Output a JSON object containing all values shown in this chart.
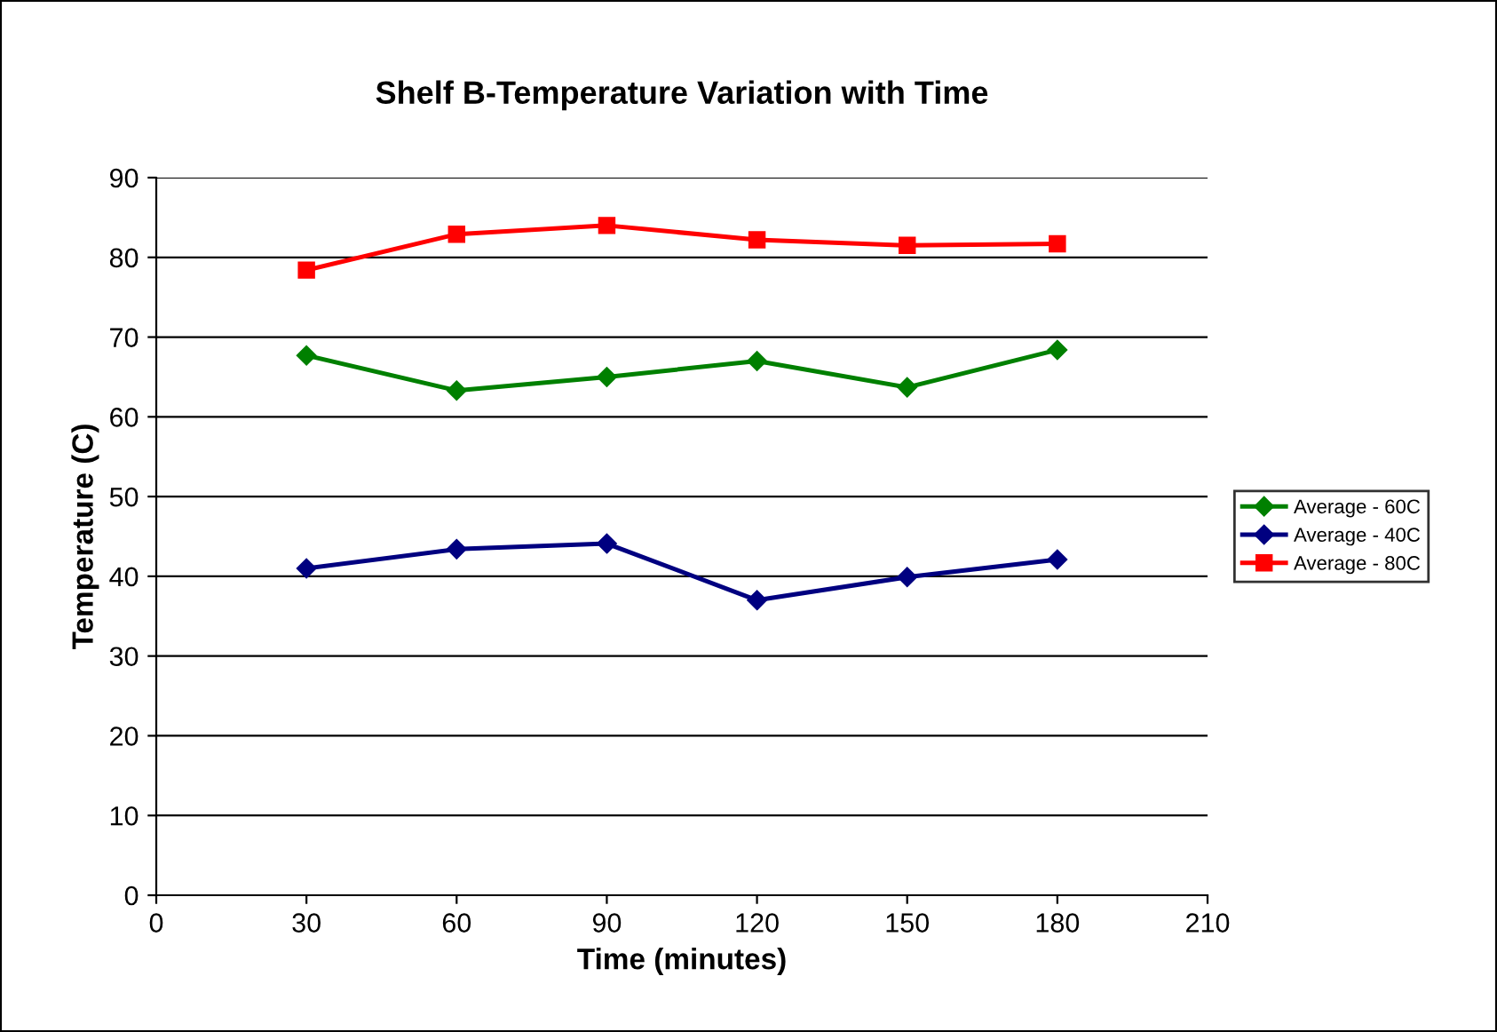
{
  "chart_data": {
    "type": "line",
    "title": "Shelf B-Temperature Variation with Time",
    "xlabel": "Time (minutes)",
    "ylabel": "Temperature (C)",
    "x": [
      30,
      60,
      90,
      120,
      150,
      180
    ],
    "series": [
      {
        "name": "Average - 60C",
        "color": "#008000",
        "marker": "diamond",
        "values": [
          67.7,
          63.3,
          65.0,
          67.0,
          63.7,
          68.4
        ]
      },
      {
        "name": "Average - 40C",
        "color": "#000080",
        "marker": "diamond",
        "values": [
          41.0,
          43.4,
          44.1,
          37.0,
          39.9,
          42.1
        ]
      },
      {
        "name": "Average - 80C",
        "color": "#ff0000",
        "marker": "square",
        "values": [
          78.4,
          82.9,
          84.0,
          82.2,
          81.5,
          81.7
        ]
      }
    ],
    "xlim": [
      0,
      210
    ],
    "xticks": [
      0,
      30,
      60,
      90,
      120,
      150,
      180,
      210
    ],
    "ylim": [
      0,
      90
    ],
    "yticks": [
      0,
      10,
      20,
      30,
      40,
      50,
      60,
      70,
      80,
      90
    ],
    "grid": "y",
    "legend": "right",
    "line_style": "solid"
  }
}
